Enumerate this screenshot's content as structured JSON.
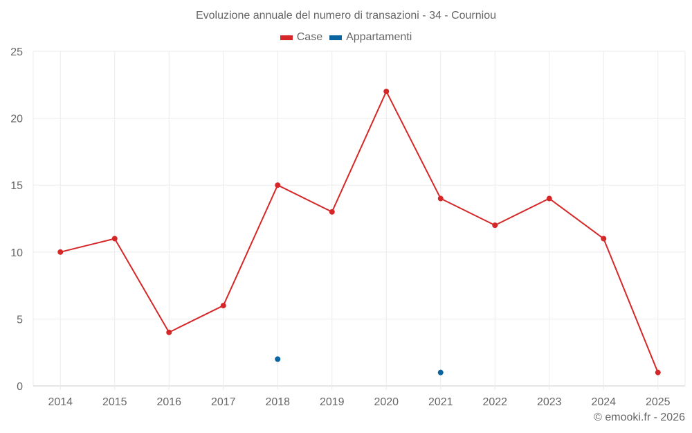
{
  "title": "Evoluzione annuale del numero di transazioni - 34 - Courniou",
  "legend": [
    {
      "label": "Case",
      "color": "#d62728"
    },
    {
      "label": "Appartamenti",
      "color": "#0b64a0"
    }
  ],
  "credit": "© emooki.fr - 2026",
  "chart_data": {
    "type": "line",
    "title": "Evoluzione annuale del numero di transazioni - 34 - Courniou",
    "xlabel": "",
    "ylabel": "",
    "categories": [
      "2014",
      "2015",
      "2016",
      "2017",
      "2018",
      "2019",
      "2020",
      "2021",
      "2022",
      "2023",
      "2024",
      "2025"
    ],
    "series": [
      {
        "name": "Case",
        "color": "#d62728",
        "values": [
          10,
          11,
          4,
          6,
          15,
          13,
          22,
          14,
          12,
          14,
          11,
          1
        ]
      },
      {
        "name": "Appartamenti",
        "color": "#0b64a0",
        "values": [
          null,
          null,
          null,
          null,
          2,
          null,
          null,
          1,
          null,
          null,
          null,
          null
        ]
      }
    ],
    "ylim": [
      0,
      25
    ],
    "yticks": [
      0,
      5,
      10,
      15,
      20,
      25
    ],
    "grid": true,
    "legend_position": "top"
  }
}
